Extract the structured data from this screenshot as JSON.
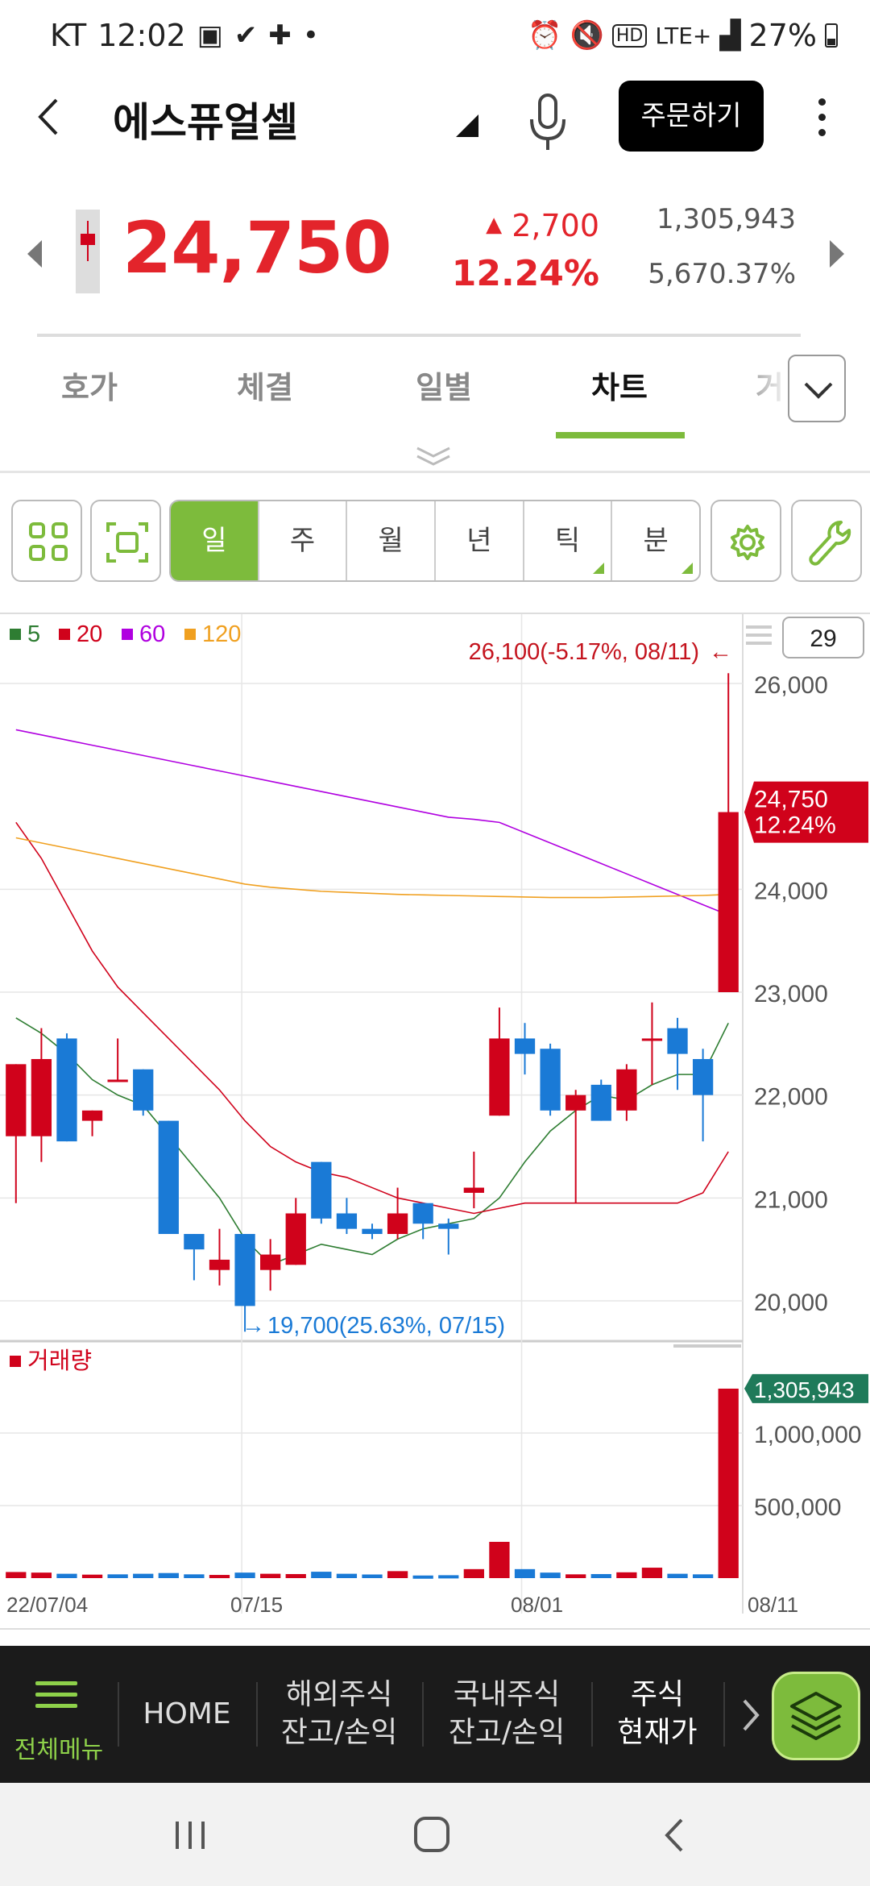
{
  "status_bar": {
    "carrier": "KT",
    "time": "12:02",
    "network": "LTE+",
    "battery": "27%"
  },
  "header": {
    "stock_name": "에스퓨얼셀",
    "order_button": "주문하기"
  },
  "quote": {
    "price": "24,750",
    "change_amount": "2,700",
    "change_percent": "12.24%",
    "volume": "1,305,943",
    "volume_ratio": "5,670.37%"
  },
  "tabs": [
    {
      "label": "호가",
      "active": false
    },
    {
      "label": "체결",
      "active": false
    },
    {
      "label": "일별",
      "active": false
    },
    {
      "label": "차트",
      "active": true
    },
    {
      "label": "거",
      "active": false
    }
  ],
  "periods": [
    {
      "label": "일",
      "active": true,
      "submenu": false
    },
    {
      "label": "주",
      "active": false,
      "submenu": false
    },
    {
      "label": "월",
      "active": false,
      "submenu": false
    },
    {
      "label": "년",
      "active": false,
      "submenu": false
    },
    {
      "label": "틱",
      "active": false,
      "submenu": true
    },
    {
      "label": "분",
      "active": false,
      "submenu": true
    }
  ],
  "colors": {
    "up": "#d0021b",
    "down": "#1a7ad6",
    "accent": "#7dbb3c",
    "ma5": "#2e7d32",
    "ma20": "#d0021b",
    "ma60": "#b000e0",
    "ma120": "#f0a020"
  },
  "chart_data": {
    "type": "candlestick",
    "count_label": "29",
    "legend": [
      {
        "name": "5",
        "color": "#2e7d32"
      },
      {
        "name": "20",
        "color": "#d0021b"
      },
      {
        "name": "60",
        "color": "#b000e0"
      },
      {
        "name": "120",
        "color": "#f0a020"
      }
    ],
    "price_axis": {
      "ticks": [
        "26,000",
        "24,000",
        "23,000",
        "22,000",
        "21,000",
        "20,000"
      ],
      "tick_values": [
        26000,
        24000,
        23000,
        22000,
        21000,
        20000
      ]
    },
    "x_labels": [
      "22/07/04",
      "07/15",
      "08/01",
      "08/11"
    ],
    "max_annotation": "26,100(-5.17%, 08/11)",
    "min_annotation": "19,700(25.63%, 07/15)",
    "current_label": {
      "price": "24,750",
      "percent": "12.24%"
    },
    "candles": [
      {
        "o": 21600,
        "h": 22300,
        "l": 20950,
        "c": 22300
      },
      {
        "o": 21600,
        "h": 22650,
        "l": 21350,
        "c": 22350
      },
      {
        "o": 22550,
        "h": 22600,
        "l": 21550,
        "c": 21550
      },
      {
        "o": 21750,
        "h": 21850,
        "l": 21600,
        "c": 21850
      },
      {
        "o": 22150,
        "h": 22550,
        "l": 22150,
        "c": 22150
      },
      {
        "o": 22250,
        "h": 22250,
        "l": 21800,
        "c": 21850
      },
      {
        "o": 21750,
        "h": 21750,
        "l": 20650,
        "c": 20650
      },
      {
        "o": 20650,
        "h": 20650,
        "l": 20200,
        "c": 20500
      },
      {
        "o": 20300,
        "h": 20700,
        "l": 20150,
        "c": 20400
      },
      {
        "o": 20650,
        "h": 20650,
        "l": 19700,
        "c": 19950
      },
      {
        "o": 20300,
        "h": 20600,
        "l": 20100,
        "c": 20450
      },
      {
        "o": 20350,
        "h": 21000,
        "l": 20350,
        "c": 20850
      },
      {
        "o": 21350,
        "h": 21350,
        "l": 20750,
        "c": 20800
      },
      {
        "o": 20850,
        "h": 21000,
        "l": 20650,
        "c": 20700
      },
      {
        "o": 20700,
        "h": 20750,
        "l": 20600,
        "c": 20650
      },
      {
        "o": 20650,
        "h": 21100,
        "l": 20600,
        "c": 20850
      },
      {
        "o": 20950,
        "h": 20950,
        "l": 20600,
        "c": 20750
      },
      {
        "o": 20750,
        "h": 20800,
        "l": 20450,
        "c": 20700
      },
      {
        "o": 21050,
        "h": 21450,
        "l": 20900,
        "c": 21100
      },
      {
        "o": 21800,
        "h": 22850,
        "l": 21800,
        "c": 22550
      },
      {
        "o": 22550,
        "h": 22700,
        "l": 22200,
        "c": 22400
      },
      {
        "o": 22450,
        "h": 22500,
        "l": 21800,
        "c": 21850
      },
      {
        "o": 21850,
        "h": 22050,
        "l": 20950,
        "c": 22000
      },
      {
        "o": 22100,
        "h": 22150,
        "l": 21750,
        "c": 21750
      },
      {
        "o": 21850,
        "h": 22300,
        "l": 21750,
        "c": 22250
      },
      {
        "o": 22550,
        "h": 22900,
        "l": 22100,
        "c": 22550
      },
      {
        "o": 22650,
        "h": 22750,
        "l": 22050,
        "c": 22400
      },
      {
        "o": 22350,
        "h": 22450,
        "l": 21550,
        "c": 22000
      },
      {
        "o": 23000,
        "h": 26100,
        "l": 23000,
        "c": 24750
      }
    ],
    "ma": {
      "ma5": [
        22750,
        22600,
        22400,
        22150,
        22000,
        21900,
        21600,
        21300,
        21000,
        20600,
        20350,
        20450,
        20550,
        20500,
        20450,
        20600,
        20700,
        20750,
        20800,
        21000,
        21350,
        21650,
        21850,
        22000,
        21950,
        22100,
        22200,
        22200,
        22700
      ],
      "ma60": [
        25550,
        25500,
        25450,
        25400,
        25350,
        25300,
        25250,
        25200,
        25150,
        25100,
        25050,
        25000,
        24950,
        24900,
        24850,
        24800,
        24750,
        24700,
        24680,
        24650,
        24550,
        24450,
        24350,
        24250,
        24150,
        24050,
        23950,
        23850,
        23750
      ],
      "ma20": [
        24650,
        24300,
        23850,
        23400,
        23050,
        22800,
        22550,
        22300,
        22050,
        21750,
        21500,
        21350,
        21250,
        21200,
        21100,
        21000,
        20950,
        20900,
        20850,
        20900,
        20950,
        20950,
        20950,
        20950,
        20950,
        20950,
        20950,
        21050,
        21450
      ],
      "ma120": [
        24500,
        24450,
        24400,
        24350,
        24300,
        24250,
        24200,
        24150,
        24100,
        24050,
        24020,
        24000,
        23980,
        23970,
        23960,
        23950,
        23945,
        23940,
        23935,
        23930,
        23925,
        23920,
        23920,
        23920,
        23925,
        23930,
        23935,
        23940,
        23950
      ]
    },
    "volume_panel": {
      "label": "거래량",
      "ticks": [
        "1,000,000",
        "500,000"
      ],
      "tick_values": [
        1000000,
        500000
      ],
      "current_label": "1,305,943",
      "values": [
        42000,
        38000,
        30000,
        24000,
        26000,
        30000,
        35000,
        26000,
        22000,
        38000,
        30000,
        28000,
        44000,
        30000,
        25000,
        48000,
        18000,
        20000,
        62000,
        250000,
        62000,
        38000,
        26000,
        28000,
        40000,
        72000,
        30000,
        26000,
        1305943
      ],
      "up": [
        true,
        true,
        false,
        true,
        false,
        false,
        false,
        false,
        true,
        false,
        true,
        true,
        false,
        false,
        false,
        true,
        false,
        false,
        true,
        true,
        false,
        false,
        true,
        false,
        true,
        true,
        false,
        false,
        true
      ]
    }
  },
  "bottom_nav": {
    "menu_label": "전체메뉴",
    "items": [
      {
        "line1": "HOME",
        "line2": ""
      },
      {
        "line1": "해외주식",
        "line2": "잔고/손익"
      },
      {
        "line1": "국내주식",
        "line2": "잔고/손익"
      },
      {
        "line1": "주식",
        "line2": "현재가"
      }
    ]
  }
}
